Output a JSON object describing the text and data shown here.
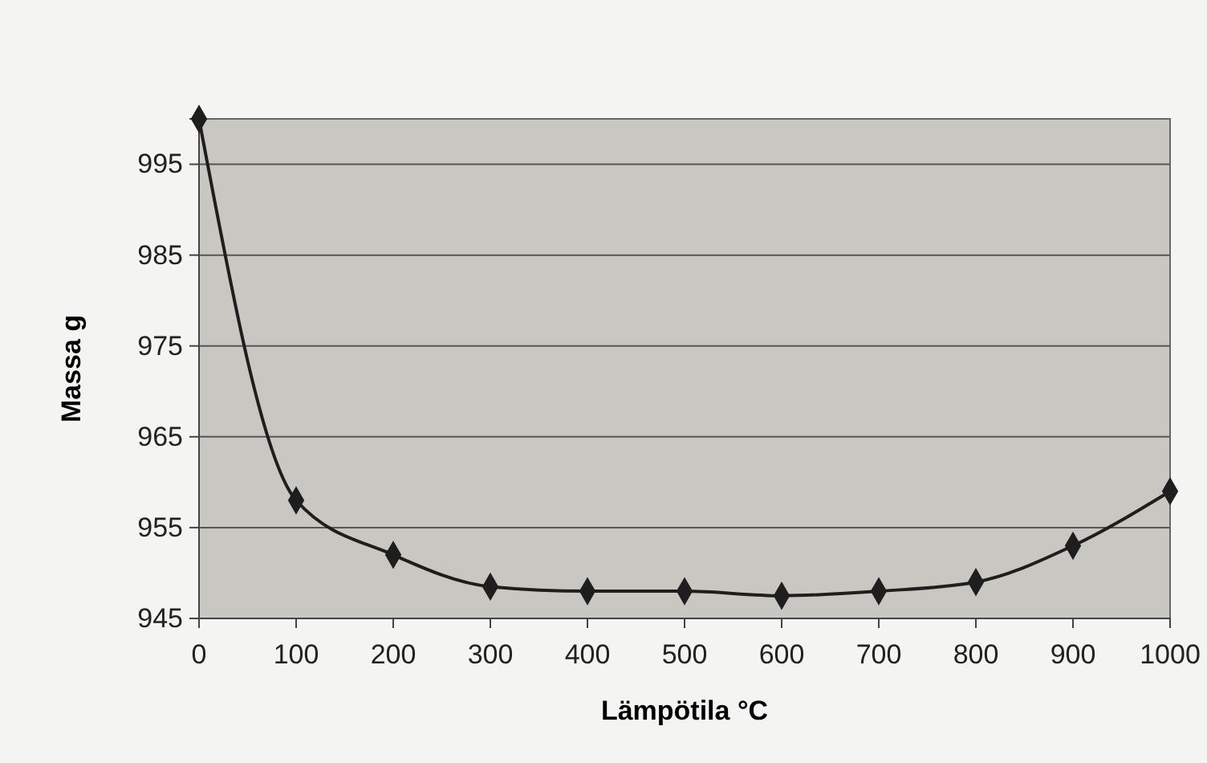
{
  "chart_data": {
    "type": "line",
    "xlabel": "Lämpötila °C",
    "ylabel": "Massa g",
    "x": [
      0,
      100,
      200,
      300,
      400,
      500,
      600,
      700,
      800,
      900,
      1000
    ],
    "series": [
      {
        "color": "#1e1e1e",
        "values": [
          1000,
          958,
          952,
          948.5,
          948,
          948,
          947.5,
          948,
          949,
          953,
          959
        ]
      }
    ],
    "xlim": [
      0,
      1000
    ],
    "xticks": [
      0,
      100,
      200,
      300,
      400,
      500,
      600,
      700,
      800,
      900,
      1000
    ],
    "ylim": [
      945,
      1000
    ],
    "yticks": [
      945,
      955,
      965,
      975,
      985,
      995
    ],
    "grid": "y",
    "marker": "diamond",
    "line_style": "solid"
  }
}
